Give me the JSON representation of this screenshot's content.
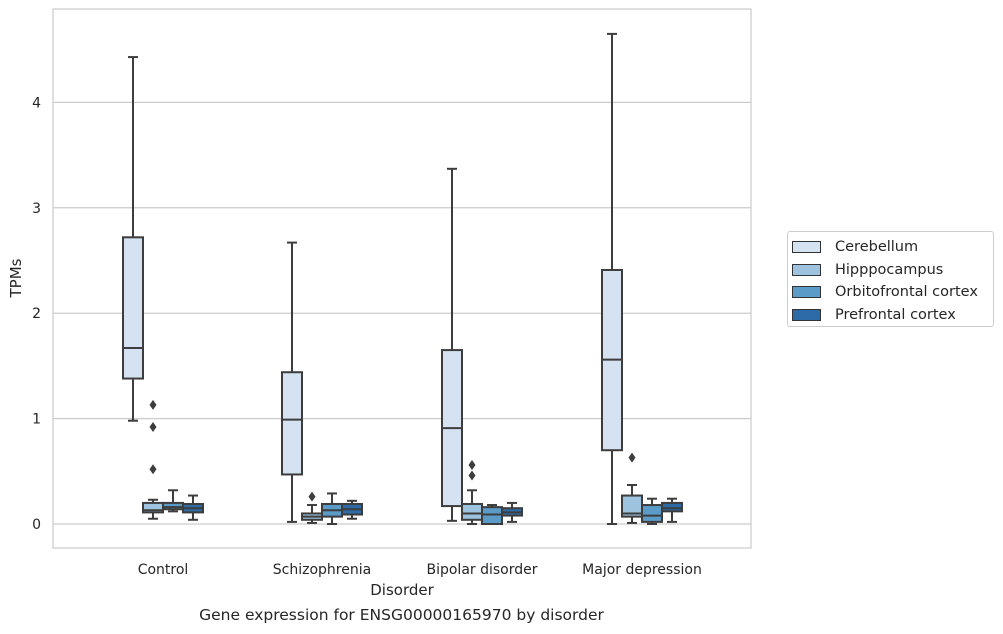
{
  "chart_data": {
    "type": "boxplot",
    "xlabel": "Disorder",
    "ylabel": "TPMs",
    "caption": "Gene expression for ENSG00000165970 by disorder",
    "ylim": [
      -0.22,
      4.86
    ],
    "yticks": [
      "0",
      "1",
      "2",
      "3",
      "4"
    ],
    "grid": "horizontal",
    "legend_position": "right",
    "categories": [
      "Control",
      "Schizophrenia",
      "Bipolar disorder",
      "Major depression"
    ],
    "series": [
      {
        "name": "Cerebellum",
        "color": "#d4e2f1",
        "boxes": [
          {
            "whislo": 0.98,
            "q1": 1.38,
            "med": 1.67,
            "q3": 2.72,
            "whishi": 4.43,
            "fliers": []
          },
          {
            "whislo": 0.02,
            "q1": 0.47,
            "med": 0.99,
            "q3": 1.44,
            "whishi": 2.67,
            "fliers": []
          },
          {
            "whislo": 0.03,
            "q1": 0.17,
            "med": 0.91,
            "q3": 1.65,
            "whishi": 3.37,
            "fliers": []
          },
          {
            "whislo": 0.0,
            "q1": 0.7,
            "med": 1.56,
            "q3": 2.41,
            "whishi": 4.65,
            "fliers": []
          }
        ]
      },
      {
        "name": "Hipppocampus",
        "color": "#9dc3df",
        "boxes": [
          {
            "whislo": 0.05,
            "q1": 0.11,
            "med": 0.13,
            "q3": 0.2,
            "whishi": 0.23,
            "fliers": [
              1.13,
              0.92,
              0.52
            ]
          },
          {
            "whislo": 0.01,
            "q1": 0.04,
            "med": 0.07,
            "q3": 0.1,
            "whishi": 0.18,
            "fliers": [
              0.26
            ]
          },
          {
            "whislo": 0.0,
            "q1": 0.04,
            "med": 0.1,
            "q3": 0.19,
            "whishi": 0.32,
            "fliers": [
              0.56,
              0.46
            ]
          },
          {
            "whislo": 0.01,
            "q1": 0.07,
            "med": 0.1,
            "q3": 0.27,
            "whishi": 0.37,
            "fliers": [
              0.63
            ]
          }
        ]
      },
      {
        "name": "Orbitofrontal cortex",
        "color": "#5b9bc8",
        "boxes": [
          {
            "whislo": 0.12,
            "q1": 0.14,
            "med": 0.16,
            "q3": 0.2,
            "whishi": 0.32,
            "fliers": []
          },
          {
            "whislo": 0.0,
            "q1": 0.07,
            "med": 0.13,
            "q3": 0.19,
            "whishi": 0.29,
            "fliers": []
          },
          {
            "whislo": 0.0,
            "q1": 0.0,
            "med": 0.09,
            "q3": 0.16,
            "whishi": 0.18,
            "fliers": []
          },
          {
            "whislo": 0.0,
            "q1": 0.02,
            "med": 0.08,
            "q3": 0.18,
            "whishi": 0.24,
            "fliers": []
          }
        ]
      },
      {
        "name": "Prefrontal cortex",
        "color": "#2d6ba6",
        "boxes": [
          {
            "whislo": 0.04,
            "q1": 0.11,
            "med": 0.15,
            "q3": 0.19,
            "whishi": 0.27,
            "fliers": []
          },
          {
            "whislo": 0.05,
            "q1": 0.09,
            "med": 0.14,
            "q3": 0.19,
            "whishi": 0.22,
            "fliers": []
          },
          {
            "whislo": 0.02,
            "q1": 0.08,
            "med": 0.11,
            "q3": 0.15,
            "whishi": 0.2,
            "fliers": []
          },
          {
            "whislo": 0.02,
            "q1": 0.12,
            "med": 0.15,
            "q3": 0.2,
            "whishi": 0.24,
            "fliers": []
          }
        ]
      }
    ]
  }
}
